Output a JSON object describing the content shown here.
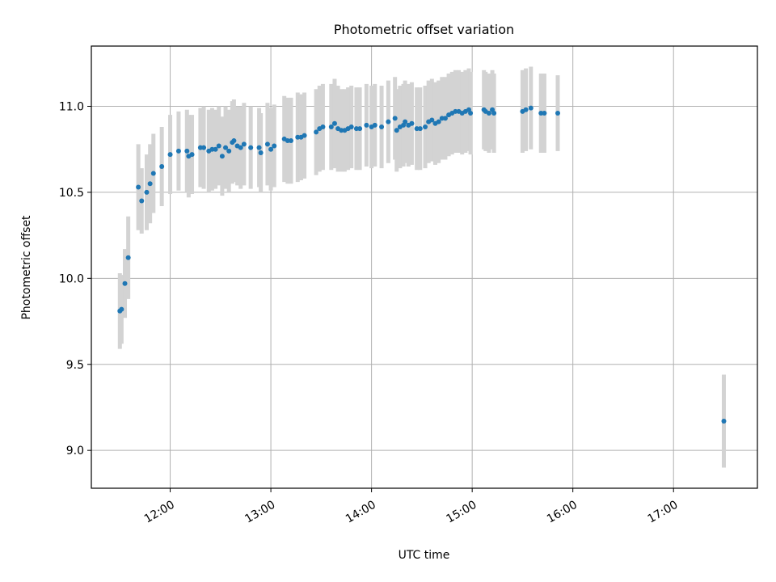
{
  "chart_data": {
    "type": "scatter",
    "title": "Photometric offset variation",
    "xlabel": "UTC time",
    "ylabel": "Photometric offset",
    "x_is_time": true,
    "xlim": [
      "11:13",
      "17:50"
    ],
    "ylim": [
      8.78,
      11.35
    ],
    "xticks": [
      "12:00",
      "13:00",
      "14:00",
      "15:00",
      "16:00",
      "17:00"
    ],
    "yticks": [
      9.0,
      9.5,
      10.0,
      10.5,
      11.0
    ],
    "grid": true,
    "legend": false,
    "colors": {
      "points": "#1f77b4",
      "errorbars": "#d3d3d3",
      "grid": "#b0b0b0"
    },
    "series": [
      {
        "points": [
          [
            "11:30",
            9.81,
            0.22
          ],
          [
            "11:31",
            9.82,
            0.2
          ],
          [
            "11:33",
            9.97,
            0.2
          ],
          [
            "11:35",
            10.12,
            0.24
          ],
          [
            "11:41",
            10.53,
            0.25
          ],
          [
            "11:43",
            10.45,
            0.19
          ],
          [
            "11:46",
            10.5,
            0.22
          ],
          [
            "11:48",
            10.55,
            0.23
          ],
          [
            "11:50",
            10.61,
            0.23
          ],
          [
            "11:55",
            10.65,
            0.23
          ],
          [
            "12:00",
            10.72,
            0.23
          ],
          [
            "12:05",
            10.74,
            0.23
          ],
          [
            "12:10",
            10.74,
            0.24
          ],
          [
            "12:11",
            10.71,
            0.24
          ],
          [
            "12:13",
            10.72,
            0.23
          ],
          [
            "12:18",
            10.76,
            0.23
          ],
          [
            "12:20",
            10.76,
            0.24
          ],
          [
            "12:23",
            10.74,
            0.24
          ],
          [
            "12:25",
            10.75,
            0.24
          ],
          [
            "12:27",
            10.75,
            0.23
          ],
          [
            "12:29",
            10.77,
            0.23
          ],
          [
            "12:31",
            10.71,
            0.23
          ],
          [
            "12:33",
            10.76,
            0.24
          ],
          [
            "12:35",
            10.74,
            0.24
          ],
          [
            "12:37",
            10.79,
            0.24
          ],
          [
            "12:38",
            10.8,
            0.24
          ],
          [
            "12:40",
            10.77,
            0.23
          ],
          [
            "12:42",
            10.76,
            0.24
          ],
          [
            "12:44",
            10.78,
            0.24
          ],
          [
            "12:48",
            10.76,
            0.24
          ],
          [
            "12:53",
            10.76,
            0.23
          ],
          [
            "12:54",
            10.73,
            0.23
          ],
          [
            "12:58",
            10.78,
            0.24
          ],
          [
            "13:00",
            10.75,
            0.24
          ],
          [
            "13:02",
            10.77,
            0.24
          ],
          [
            "13:08",
            10.81,
            0.25
          ],
          [
            "13:10",
            10.8,
            0.25
          ],
          [
            "13:12",
            10.8,
            0.25
          ],
          [
            "13:16",
            10.82,
            0.26
          ],
          [
            "13:18",
            10.82,
            0.25
          ],
          [
            "13:20",
            10.83,
            0.25
          ],
          [
            "13:27",
            10.85,
            0.25
          ],
          [
            "13:29",
            10.87,
            0.25
          ],
          [
            "13:31",
            10.88,
            0.25
          ],
          [
            "13:36",
            10.88,
            0.25
          ],
          [
            "13:38",
            10.9,
            0.26
          ],
          [
            "13:40",
            10.87,
            0.25
          ],
          [
            "13:42",
            10.86,
            0.24
          ],
          [
            "13:44",
            10.86,
            0.24
          ],
          [
            "13:46",
            10.87,
            0.24
          ],
          [
            "13:48",
            10.88,
            0.24
          ],
          [
            "13:51",
            10.87,
            0.24
          ],
          [
            "13:53",
            10.87,
            0.24
          ],
          [
            "13:57",
            10.89,
            0.24
          ],
          [
            "14:00",
            10.88,
            0.24
          ],
          [
            "14:02",
            10.89,
            0.24
          ],
          [
            "14:06",
            10.88,
            0.24
          ],
          [
            "14:10",
            10.91,
            0.24
          ],
          [
            "14:14",
            10.93,
            0.24
          ],
          [
            "14:15",
            10.86,
            0.24
          ],
          [
            "14:17",
            10.88,
            0.24
          ],
          [
            "14:19",
            10.89,
            0.24
          ],
          [
            "14:20",
            10.91,
            0.24
          ],
          [
            "14:22",
            10.89,
            0.24
          ],
          [
            "14:24",
            10.9,
            0.24
          ],
          [
            "14:27",
            10.87,
            0.24
          ],
          [
            "14:29",
            10.87,
            0.24
          ],
          [
            "14:32",
            10.88,
            0.24
          ],
          [
            "14:34",
            10.91,
            0.24
          ],
          [
            "14:36",
            10.92,
            0.24
          ],
          [
            "14:38",
            10.9,
            0.24
          ],
          [
            "14:40",
            10.91,
            0.24
          ],
          [
            "14:42",
            10.93,
            0.24
          ],
          [
            "14:44",
            10.93,
            0.24
          ],
          [
            "14:46",
            10.95,
            0.24
          ],
          [
            "14:48",
            10.96,
            0.24
          ],
          [
            "14:50",
            10.97,
            0.24
          ],
          [
            "14:52",
            10.97,
            0.24
          ],
          [
            "14:54",
            10.96,
            0.24
          ],
          [
            "14:56",
            10.97,
            0.24
          ],
          [
            "14:58",
            10.98,
            0.24
          ],
          [
            "14:59",
            10.96,
            0.24
          ],
          [
            "15:07",
            10.98,
            0.23
          ],
          [
            "15:08",
            10.97,
            0.23
          ],
          [
            "15:10",
            10.96,
            0.23
          ],
          [
            "15:12",
            10.98,
            0.23
          ],
          [
            "15:13",
            10.96,
            0.23
          ],
          [
            "15:30",
            10.97,
            0.24
          ],
          [
            "15:32",
            10.98,
            0.24
          ],
          [
            "15:35",
            10.99,
            0.24
          ],
          [
            "15:41",
            10.96,
            0.23
          ],
          [
            "15:43",
            10.96,
            0.23
          ],
          [
            "15:51",
            10.96,
            0.22
          ],
          [
            "17:30",
            9.17,
            0.27
          ]
        ]
      }
    ]
  }
}
